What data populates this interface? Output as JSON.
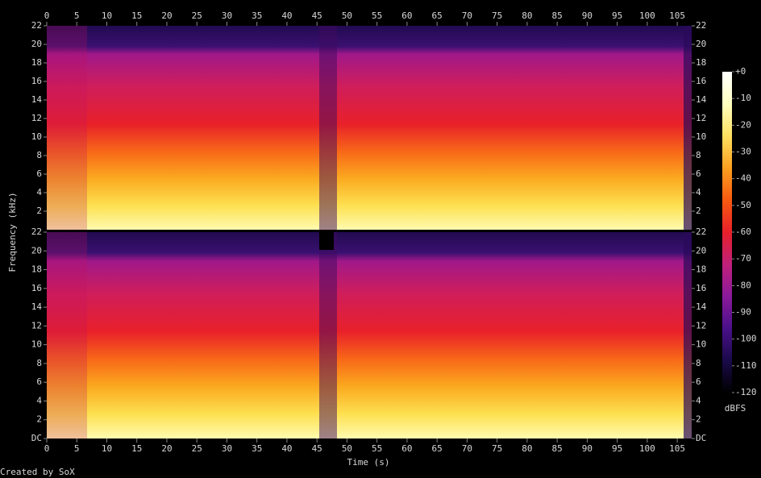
{
  "chart_data": {
    "type": "spectrogram",
    "x_label": "Time (s)",
    "y_label": "Frequency (kHz)",
    "xlim": [
      0,
      107.4
    ],
    "xticks": [
      0,
      5,
      10,
      15,
      20,
      25,
      30,
      35,
      40,
      45,
      50,
      55,
      60,
      65,
      70,
      75,
      80,
      85,
      90,
      95,
      100,
      105
    ],
    "channels": [
      {
        "ylim": [
          0,
          22
        ],
        "yticks": [
          2,
          4,
          6,
          8,
          10,
          12,
          14,
          16,
          18,
          20,
          22
        ]
      },
      {
        "ylim": [
          0,
          22
        ],
        "yticks": [
          {
            "value": 0,
            "label": "DC"
          },
          2,
          4,
          6,
          8,
          10,
          12,
          14,
          16,
          18,
          20,
          22
        ]
      }
    ],
    "colorbar": {
      "label": "dBFS",
      "zlim": [
        -120,
        0
      ],
      "zticks": [
        {
          "value": 0,
          "label": "+0"
        },
        -10,
        -20,
        -30,
        -40,
        -50,
        -60,
        -70,
        -80,
        -90,
        -100,
        -110,
        -120
      ],
      "colormap": [
        "#000000",
        "#1a0a4a",
        "#4a108a",
        "#8a1a9a",
        "#c0207a",
        "#e8202a",
        "#f85a10",
        "#fca020",
        "#fee060",
        "#ffffc0",
        "#ffffff"
      ]
    }
  },
  "footer": "Created by SoX"
}
